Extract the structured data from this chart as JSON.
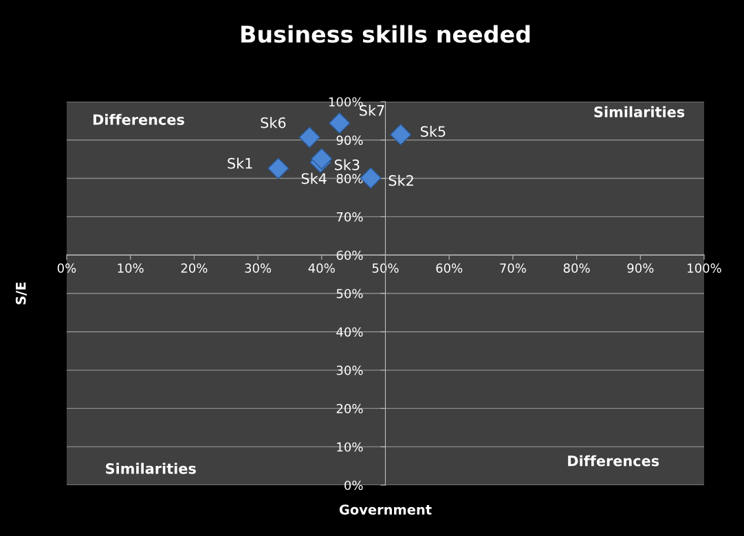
{
  "chart_data": {
    "type": "scatter",
    "title": "Business skills needed",
    "xlabel": "Government",
    "ylabel": "S/E",
    "annotations": [
      "Differences",
      "Similarities",
      "Similarities",
      "Differences"
    ],
    "series": [
      {
        "color": "#4a86d4",
        "x": [
          33.2,
          47.7,
          39.8,
          40.0,
          52.4,
          38.1,
          42.8
        ],
        "values": [
          82.6,
          80.1,
          84.2,
          85.1,
          91.4,
          90.7,
          94.4
        ],
        "value_labels": [
          "Sk1",
          "Sk2",
          "Sk3",
          "Sk4",
          "Sk5",
          "Sk6",
          "Sk7"
        ]
      }
    ],
    "marker": "diamond",
    "grid": "y",
    "xlim": [
      0,
      100
    ],
    "ylim": [
      0,
      100
    ],
    "xticks": [
      {
        "value": 0,
        "label": "0%"
      },
      {
        "value": 10,
        "label": "10%"
      },
      {
        "value": 20,
        "label": "20%"
      },
      {
        "value": 30,
        "label": "30%"
      },
      {
        "value": 40,
        "label": "40%"
      },
      {
        "value": 50,
        "label": "50%"
      },
      {
        "value": 60,
        "label": "60%"
      },
      {
        "value": 70,
        "label": "70%"
      },
      {
        "value": 80,
        "label": "80%"
      },
      {
        "value": 90,
        "label": "90%"
      },
      {
        "value": 100,
        "label": "100%"
      }
    ],
    "yticks": [
      {
        "value": 0,
        "label": "0%"
      },
      {
        "value": 10,
        "label": "10%"
      },
      {
        "value": 20,
        "label": "20%"
      },
      {
        "value": 30,
        "label": "30%"
      },
      {
        "value": 40,
        "label": "40%"
      },
      {
        "value": 50,
        "label": "50%"
      },
      {
        "value": 60,
        "label": "60%"
      },
      {
        "value": 70,
        "label": "70%"
      },
      {
        "value": 80,
        "label": "80%"
      },
      {
        "value": 90,
        "label": "90%"
      },
      {
        "value": 100,
        "label": "100%"
      }
    ]
  }
}
